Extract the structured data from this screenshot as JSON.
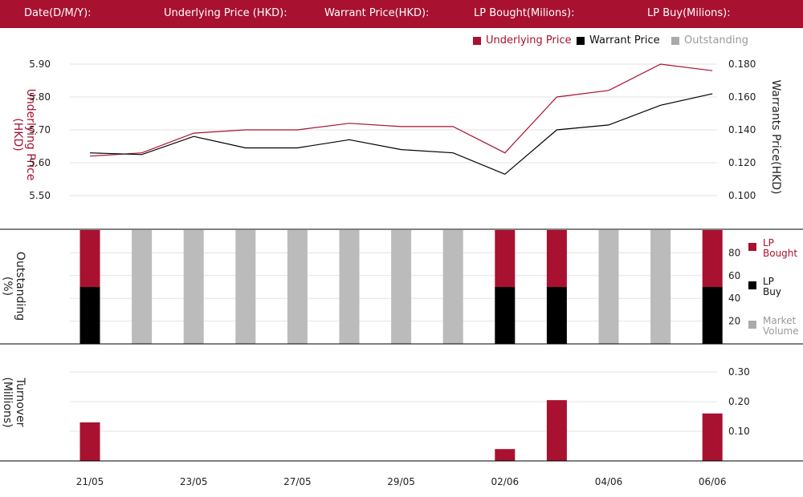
{
  "header": {
    "date_label": "Date(D/M/Y):",
    "underlying_label": "Underlying Price (HKD):",
    "warrant_label": "Warrant  Price(HKD):",
    "lp_bought_label": "LP Bought(Milions):",
    "lp_buy_label": "LP Buy(Milions):"
  },
  "colors": {
    "brand": "#a8112f",
    "warrant": "#000000",
    "outstanding": "#bbbbbb"
  },
  "legend_top": [
    {
      "label": "Underlying Price",
      "color": "#a8112f"
    },
    {
      "label": "Warrant  Price",
      "color": "#000000"
    },
    {
      "label": "Outstanding",
      "color": "#aaaaaa"
    }
  ],
  "chart_data": [
    {
      "type": "line",
      "ylabel_left": "Underlying Price (HKD)",
      "ylabel_right": "Warrants  Price(HKD)",
      "y_left_ticks": [
        "5.50",
        "5.60",
        "5.70",
        "5.80",
        "5.90"
      ],
      "y_right_ticks": [
        "0.100",
        "0.120",
        "0.140",
        "0.160",
        "0.180"
      ],
      "ylim_left": [
        5.5,
        5.9
      ],
      "ylim_right": [
        0.1,
        0.18
      ],
      "series": [
        {
          "name": "Underlying Price",
          "color": "#a8112f",
          "values": [
            5.62,
            5.63,
            5.69,
            5.7,
            5.7,
            5.72,
            5.71,
            5.71,
            5.63,
            5.8,
            5.82,
            5.9,
            5.88
          ]
        },
        {
          "name": "Warrant  Price",
          "color": "#000000",
          "values": [
            0.126,
            0.125,
            0.136,
            0.129,
            0.129,
            0.134,
            0.128,
            0.126,
            0.113,
            0.14,
            0.143,
            0.155,
            0.162
          ]
        }
      ]
    },
    {
      "type": "bar",
      "ylabel": "Outstanding (%)",
      "y_ticks": [
        "20",
        "40",
        "60",
        "80"
      ],
      "ylim": [
        0,
        100
      ],
      "series": [
        {
          "name": "LP Bought",
          "color": "#a8112f",
          "values": [
            50,
            0,
            0,
            0,
            0,
            0,
            0,
            0,
            50,
            50,
            0,
            0,
            50
          ]
        },
        {
          "name": "LP Buy",
          "color": "#000000",
          "values": [
            50,
            0,
            0,
            0,
            0,
            0,
            0,
            0,
            50,
            50,
            0,
            0,
            50
          ]
        },
        {
          "name": "Market Volume",
          "color": "#bbbbbb",
          "values": [
            0,
            100,
            100,
            100,
            100,
            100,
            100,
            100,
            0,
            0,
            100,
            100,
            0
          ]
        }
      ]
    },
    {
      "type": "bar",
      "ylabel": "Turnover (Millions)",
      "y_ticks": [
        "0.10",
        "0.20",
        "0.30"
      ],
      "ylim": [
        0,
        0.3
      ],
      "series": [
        {
          "color": "#a8112f",
          "values": [
            0.13,
            0,
            0,
            0,
            0,
            0,
            0,
            0,
            0.04,
            0.205,
            0,
            0,
            0.16
          ]
        }
      ]
    }
  ],
  "x_axis": {
    "count": 13,
    "tick_labels": [
      {
        "index": 0,
        "label": "21/05"
      },
      {
        "index": 2,
        "label": "23/05"
      },
      {
        "index": 4,
        "label": "27/05"
      },
      {
        "index": 6,
        "label": "29/05"
      },
      {
        "index": 8,
        "label": "02/06"
      },
      {
        "index": 10,
        "label": "04/06"
      },
      {
        "index": 12,
        "label": "06/06"
      }
    ]
  },
  "side_legend": [
    {
      "line1": "LP",
      "line2": "Bought",
      "color": "#a8112f",
      "text_color": "#a8112f"
    },
    {
      "line1": "LP",
      "line2": "Buy",
      "color": "#000000",
      "text_color": "#000000"
    },
    {
      "line1": "Market",
      "line2": "Volume",
      "color": "#aaaaaa",
      "text_color": "#999999"
    }
  ],
  "labels": {
    "underlying_axis_line1": "Underlying Price",
    "underlying_axis_line2": "(HKD)",
    "warrant_axis": "Warrants  Price(HKD)",
    "outstanding_line1": "Outstanding",
    "outstanding_line2": "(%)",
    "turnover_line1": "Turnover",
    "turnover_line2": "(Millions)"
  }
}
